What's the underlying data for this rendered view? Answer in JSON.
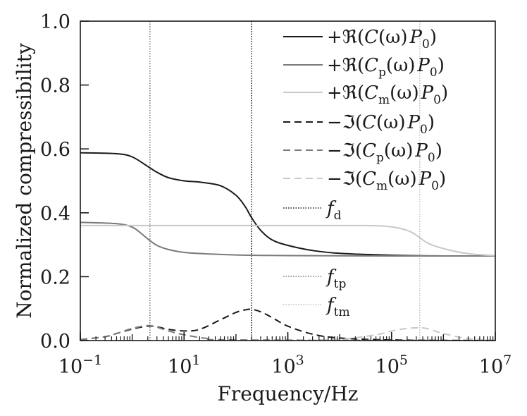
{
  "chart_data": {
    "type": "line",
    "xscale": "log",
    "xlim": [
      0.1,
      10000000
    ],
    "ylim": [
      0,
      1
    ],
    "xlabel": "Frequency/Hz",
    "ylabel": "Normalized compressibility",
    "xticks": [
      {
        "value": 0.1,
        "base": "10",
        "exp": "−1"
      },
      {
        "value": 10,
        "base": "10",
        "exp": "1"
      },
      {
        "value": 1000,
        "base": "10",
        "exp": "3"
      },
      {
        "value": 100000,
        "base": "10",
        "exp": "5"
      },
      {
        "value": 10000000,
        "base": "10",
        "exp": "7"
      }
    ],
    "yticks": [
      {
        "value": 0,
        "label": "0.0"
      },
      {
        "value": 0.2,
        "label": "0.2"
      },
      {
        "value": 0.4,
        "label": "0.4"
      },
      {
        "value": 0.6,
        "label": "0.6"
      },
      {
        "value": 0.8,
        "label": "0.8"
      },
      {
        "value": 1,
        "label": "1.0"
      }
    ],
    "grid": false,
    "legend_placement": "right",
    "series": [
      {
        "name": "+ℜ(C(ω)P₀)",
        "color": "#1a1a1a",
        "dash": "solid",
        "x": [
          0.1,
          0.5,
          1,
          2,
          3,
          5,
          10,
          20,
          50,
          100,
          150,
          200,
          300,
          500,
          1000,
          3000,
          10000,
          100000,
          1000000,
          10000000
        ],
        "y": [
          0.588,
          0.585,
          0.575,
          0.545,
          0.527,
          0.51,
          0.5,
          0.496,
          0.485,
          0.455,
          0.42,
          0.385,
          0.345,
          0.315,
          0.298,
          0.282,
          0.273,
          0.267,
          0.265,
          0.265
        ]
      },
      {
        "name": "+ℜ(C_p(ω)P₀)",
        "color": "#7a7a7a",
        "dash": "solid",
        "x": [
          0.1,
          0.5,
          1,
          1.5,
          2,
          3,
          5,
          10,
          30,
          100,
          1000,
          100000,
          10000000
        ],
        "y": [
          0.37,
          0.366,
          0.355,
          0.335,
          0.318,
          0.298,
          0.285,
          0.276,
          0.271,
          0.268,
          0.266,
          0.265,
          0.265
        ]
      },
      {
        "name": "+ℜ(C_m(ω)P₀)",
        "color": "#c8c8c8",
        "dash": "solid",
        "x": [
          0.1,
          10,
          1000,
          30000,
          100000,
          200000,
          300000,
          500000,
          1000000,
          3000000,
          10000000
        ],
        "y": [
          0.36,
          0.36,
          0.36,
          0.36,
          0.356,
          0.345,
          0.33,
          0.305,
          0.288,
          0.272,
          0.266
        ]
      },
      {
        "name": "−ℑ(C(ω)P₀)",
        "color": "#1a1a1a",
        "dash": "10,6",
        "x": [
          0.1,
          0.3,
          0.5,
          1,
          2,
          3,
          5,
          10,
          20,
          50,
          100,
          150,
          200,
          300,
          500,
          1000,
          3000,
          10000,
          100000,
          10000000
        ],
        "y": [
          0.003,
          0.012,
          0.022,
          0.036,
          0.045,
          0.043,
          0.035,
          0.03,
          0.035,
          0.065,
          0.088,
          0.096,
          0.098,
          0.09,
          0.072,
          0.045,
          0.02,
          0.008,
          0.002,
          0.0
        ]
      },
      {
        "name": "−ℑ(C_p(ω)P₀)",
        "color": "#7a7a7a",
        "dash": "10,6",
        "x": [
          0.1,
          0.3,
          0.5,
          1,
          2,
          3,
          5,
          10,
          30,
          100,
          10000000
        ],
        "y": [
          0.003,
          0.012,
          0.022,
          0.038,
          0.047,
          0.042,
          0.03,
          0.018,
          0.006,
          0.002,
          0.0
        ]
      },
      {
        "name": "−ℑ(C_m(ω)P₀)",
        "color": "#c8c8c8",
        "dash": "10,6",
        "x": [
          1000,
          10000,
          50000,
          100000,
          200000,
          350000,
          500000,
          1000000,
          3000000,
          10000000
        ],
        "y": [
          0.0,
          0.004,
          0.018,
          0.03,
          0.038,
          0.04,
          0.037,
          0.022,
          0.006,
          0.001
        ]
      }
    ],
    "vlines": [
      {
        "name": "f_d",
        "base": "f",
        "sub": "d",
        "x": 200,
        "color": "#1a1a1a"
      },
      {
        "name": "f_tp",
        "base": "f",
        "sub": "tp",
        "x": 2.2,
        "color": "#777777"
      },
      {
        "name": "f_tm",
        "base": "f",
        "sub": "tm",
        "x": 350000,
        "color": "#c0c0c0"
      }
    ],
    "legend": [
      {
        "type": "series",
        "index": 0,
        "prefix": "+",
        "op": "ℜ",
        "C": "C",
        "sub": "",
        "tail": "(ω)",
        "P": "P",
        "psub": "0"
      },
      {
        "type": "series",
        "index": 1,
        "prefix": "+",
        "op": "ℜ",
        "C": "C",
        "sub": "p",
        "tail": "(ω)",
        "P": "P",
        "psub": "0"
      },
      {
        "type": "series",
        "index": 2,
        "prefix": "+",
        "op": "ℜ",
        "C": "C",
        "sub": "m",
        "tail": "(ω)",
        "P": "P",
        "psub": "0"
      },
      {
        "type": "series",
        "index": 3,
        "prefix": "−",
        "op": "ℑ",
        "C": "C",
        "sub": "",
        "tail": "(ω)",
        "P": "P",
        "psub": "0"
      },
      {
        "type": "series",
        "index": 4,
        "prefix": "−",
        "op": "ℑ",
        "C": "C",
        "sub": "p",
        "tail": "(ω)",
        "P": "P",
        "psub": "0"
      },
      {
        "type": "series",
        "index": 5,
        "prefix": "−",
        "op": "ℑ",
        "C": "C",
        "sub": "m",
        "tail": "(ω)",
        "P": "P",
        "psub": "0"
      },
      {
        "type": "vline",
        "index": 0
      },
      {
        "type": "vline",
        "index": 1
      },
      {
        "type": "vline",
        "index": 2
      }
    ]
  }
}
